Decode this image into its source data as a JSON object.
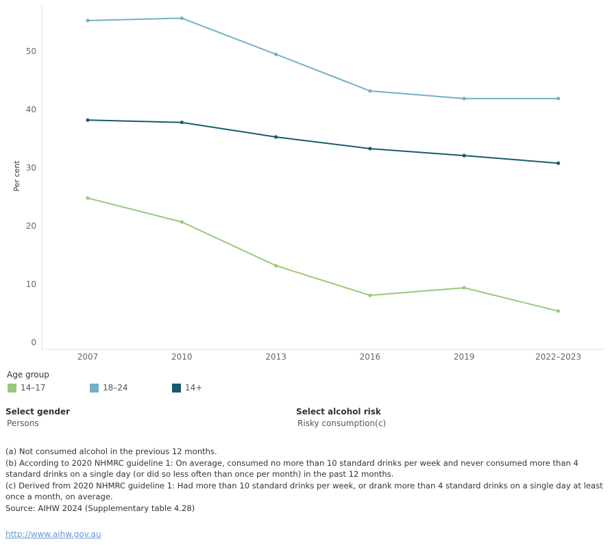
{
  "chart_data": {
    "type": "line",
    "x": [
      "2007",
      "2010",
      "2013",
      "2016",
      "2019",
      "2022–2023"
    ],
    "ylabel": "Per cent",
    "xlabel": "",
    "ylim": [
      0,
      57
    ],
    "yticks": [
      0,
      10,
      20,
      30,
      40,
      50
    ],
    "grid": false,
    "series": [
      {
        "name": "18–24",
        "color": "#6fb1c8",
        "values": [
          55.3,
          55.7,
          49.5,
          43.2,
          41.9,
          41.9
        ]
      },
      {
        "name": "14+",
        "color": "#165a6e",
        "values": [
          38.2,
          37.8,
          35.3,
          33.3,
          32.1,
          30.8
        ]
      },
      {
        "name": "14–17",
        "color": "#98c979",
        "values": [
          24.8,
          20.7,
          13.2,
          8.1,
          9.4,
          5.4
        ]
      }
    ]
  },
  "legend": {
    "title": "Age group",
    "items": [
      {
        "label": "14–17",
        "color": "#98c979"
      },
      {
        "label": "18–24",
        "color": "#6fb1c8"
      },
      {
        "label": "14+",
        "color": "#165a6e"
      }
    ]
  },
  "filters": {
    "gender_label": "Select gender",
    "gender_value": "Persons",
    "risk_label": "Select alcohol risk",
    "risk_value": "Risky consumption(c)"
  },
  "notes": [
    "(a) Not consumed alcohol in the previous 12 months.",
    "(b) According to 2020 NHMRC guideline 1: On average, consumed no more than 10 standard drinks per week and never consumed more than 4 standard drinks on a single day (or did so less often than once per month) in the past 12 months.",
    "(c) Derived from 2020 NHMRC guideline 1: Had more than 10 standard drinks per week, or drank more than 4 standard drinks on a single day at least once a month, on average.",
    "Source: AIHW 2024 (Supplementary table 4.28)"
  ],
  "link": "http://www.aihw.gov.au"
}
